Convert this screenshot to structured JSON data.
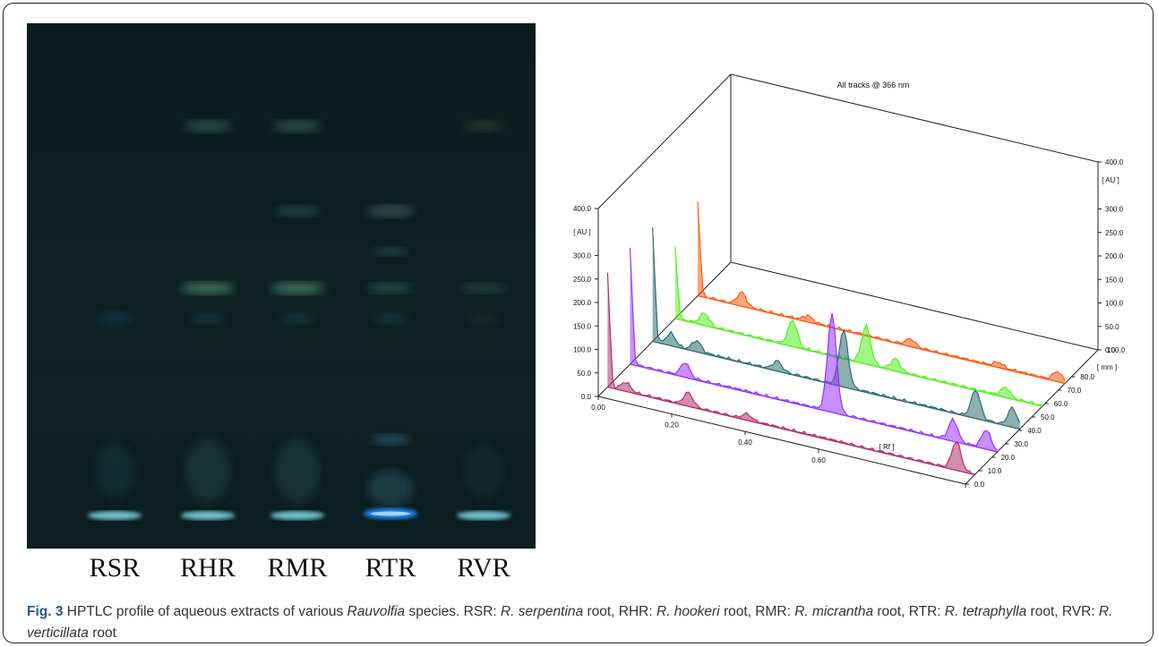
{
  "lanes": [
    "RSR",
    "RHR",
    "RMR",
    "RTR",
    "RVR"
  ],
  "chart_data": {
    "type": "area",
    "title": "All tracks @ 366 nm",
    "xlabel": "[ Rf ]",
    "ylabel": "[ AU ]",
    "zlabel": "[ mm ]",
    "xlim": [
      0.0,
      1.0
    ],
    "ylim": [
      0.0,
      400.0
    ],
    "zlim": [
      0.0,
      100.0
    ],
    "x_ticks": [
      "0.00",
      "0.20",
      "0.40",
      "0.60",
      "1.00"
    ],
    "y_ticks": [
      "0.0",
      "50.0",
      "100.0",
      "150.0",
      "200.0",
      "250.0",
      "300.0",
      "400.0"
    ],
    "y_ticks_right": [
      "0.0",
      "50.0",
      "100.0",
      "150.0",
      "200.0",
      "250.0",
      "300.0",
      "400.0"
    ],
    "z_ticks": [
      "0.0",
      "10.0",
      "20.0",
      "30.0",
      "40.0",
      "50.0",
      "60.0",
      "70.0",
      "80.0",
      "100.0"
    ],
    "series": [
      {
        "color": "#b03070",
        "peaks": [
          [
            0.0,
            240
          ],
          [
            0.05,
            18
          ],
          [
            0.22,
            28
          ],
          [
            0.38,
            12
          ],
          [
            0.95,
            60
          ]
        ]
      },
      {
        "color": "#9933ff",
        "peaks": [
          [
            0.0,
            245
          ],
          [
            0.15,
            30
          ],
          [
            0.55,
            210
          ],
          [
            0.88,
            45
          ],
          [
            0.97,
            40
          ]
        ]
      },
      {
        "color": "#2e6e6e",
        "peaks": [
          [
            0.0,
            240
          ],
          [
            0.05,
            25
          ],
          [
            0.12,
            22
          ],
          [
            0.34,
            20
          ],
          [
            0.52,
            120
          ],
          [
            0.88,
            60
          ],
          [
            0.98,
            40
          ]
        ]
      },
      {
        "color": "#55ee22",
        "peaks": [
          [
            0.0,
            150
          ],
          [
            0.08,
            25
          ],
          [
            0.32,
            55
          ],
          [
            0.52,
            80
          ],
          [
            0.6,
            25
          ],
          [
            0.9,
            20
          ]
        ]
      },
      {
        "color": "#ff5a10",
        "peaks": [
          [
            0.0,
            200
          ],
          [
            0.12,
            28
          ],
          [
            0.3,
            12
          ],
          [
            0.58,
            15
          ],
          [
            0.82,
            10
          ],
          [
            0.98,
            20
          ]
        ]
      }
    ]
  },
  "caption": {
    "fig": "Fig. 3",
    "p1": " HPTLC profile of aqueous extracts of various ",
    "genus": "Rauvolfia",
    "p2": " species. RSR: ",
    "s1": "R. serpentina",
    "p3": " root, RHR: ",
    "s2": "R. hookeri",
    "p4": " root, RMR: ",
    "s3": "R. micrantha",
    "p5": " root, RTR: ",
    "s4": "R. tetraphylla",
    "p6": " root, RVR: ",
    "s5": "R. verticillata",
    "p7": " root"
  }
}
